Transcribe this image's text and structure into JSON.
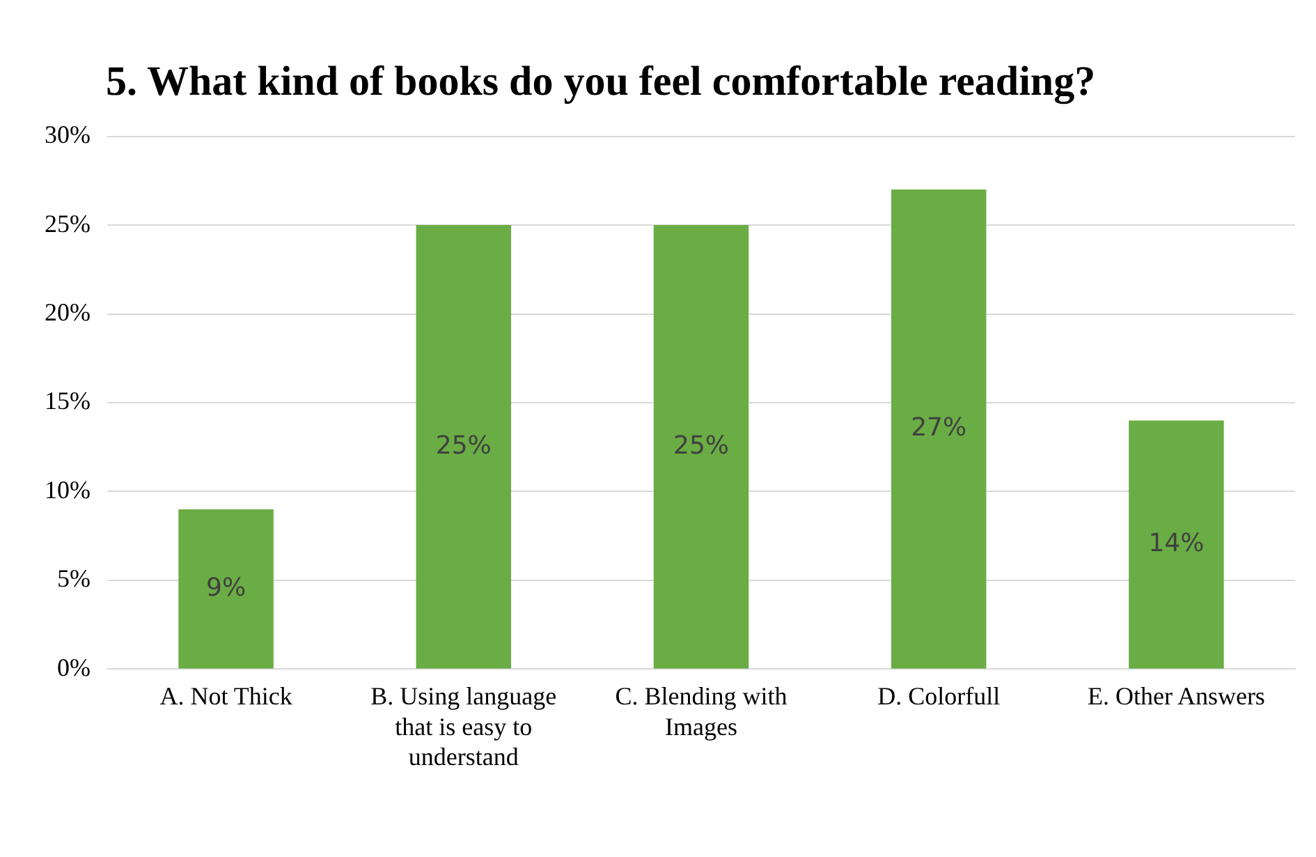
{
  "chart_data": {
    "type": "bar",
    "title": "5. What kind of books do you feel comfortable reading?",
    "categories": [
      "A. Not Thick",
      "B. Using language that is easy to understand",
      "C. Blending with Images",
      "D. Colorfull",
      "E. Other Answers"
    ],
    "values": [
      9,
      25,
      25,
      27,
      14
    ],
    "value_labels": [
      "9%",
      "25%",
      "25%",
      "27%",
      "14%"
    ],
    "color": "#6aad45",
    "ylim": [
      0,
      30
    ],
    "yticks": [
      {
        "value": 0,
        "label": "0%"
      },
      {
        "value": 5,
        "label": "5%"
      },
      {
        "value": 10,
        "label": "10%"
      },
      {
        "value": 15,
        "label": "15%"
      },
      {
        "value": 20,
        "label": "20%"
      },
      {
        "value": 25,
        "label": "25%"
      },
      {
        "value": 30,
        "label": "30%"
      }
    ],
    "grid": "y"
  }
}
